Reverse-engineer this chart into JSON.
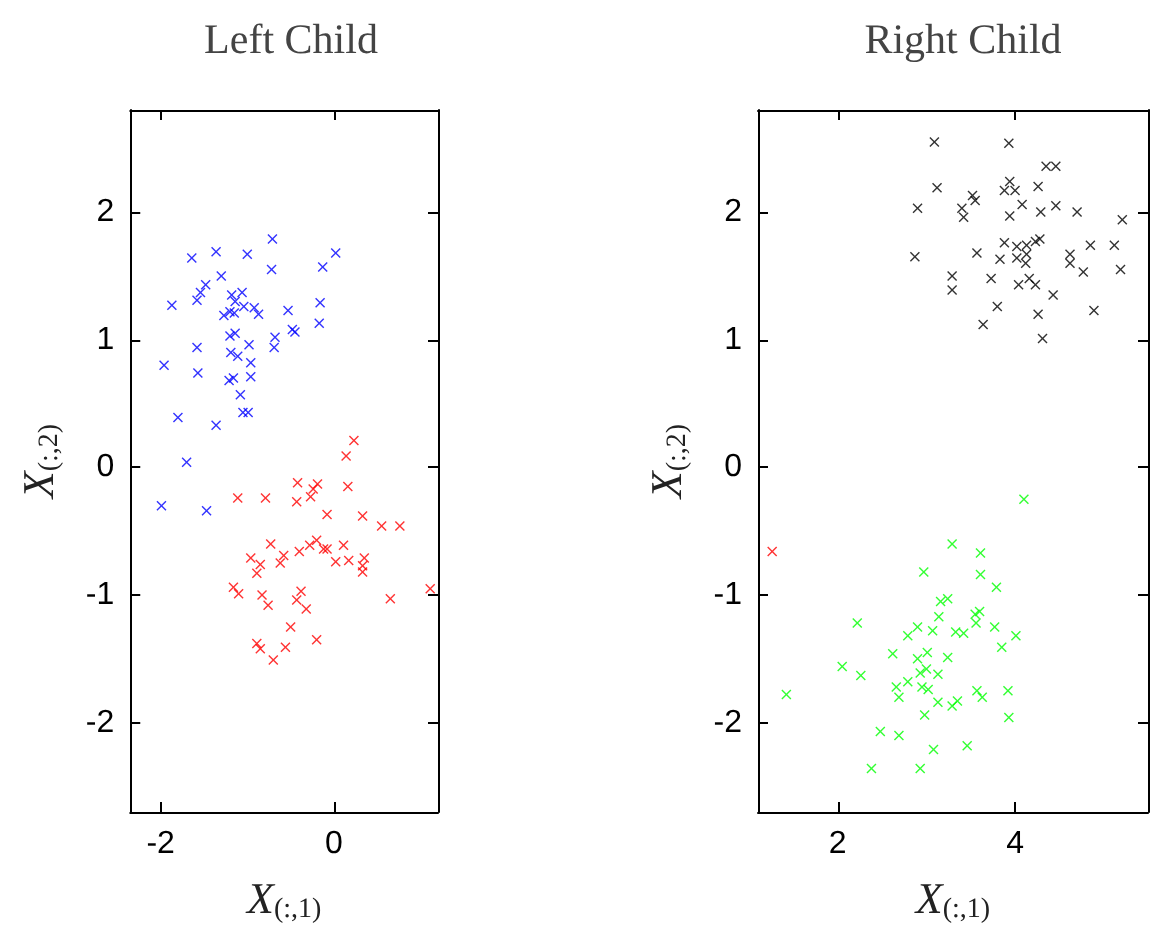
{
  "chart_data": [
    {
      "type": "scatter",
      "title": "Left Child",
      "xlabel": "X$_{(:,1)}$",
      "ylabel": "X$_{(:,2)}$",
      "xlim": [
        -2.35,
        1.2
      ],
      "ylim": [
        -2.7,
        2.8
      ],
      "xticks": [
        -2,
        0
      ],
      "yticks": [
        -2,
        -1,
        0,
        1,
        2
      ],
      "marker": "cross",
      "grid": false,
      "series": [
        {
          "color": "#0000ff",
          "x": [
            -0.71,
            -1.64,
            -1.36,
            -1.0,
            0.02,
            -0.13,
            -0.72,
            -1.3,
            -1.48,
            -1.54,
            -1.18,
            -1.06,
            -1.58,
            -1.14,
            -1.87,
            -1.04,
            -0.92,
            -1.2,
            -1.15,
            -1.27,
            -0.87,
            -0.53,
            -0.16,
            -0.17,
            -0.48,
            -0.45,
            -1.14,
            -1.2,
            -0.68,
            -0.98,
            -0.69,
            -1.58,
            -1.19,
            -1.11,
            -1.96,
            -0.96,
            -1.57,
            -0.96,
            -1.16,
            -1.21,
            -1.08,
            -1.05,
            -0.99,
            -1.8,
            -1.36,
            -1.7,
            -1.99,
            -1.47
          ],
          "values": [
            1.79,
            1.64,
            1.69,
            1.67,
            1.68,
            1.57,
            1.55,
            1.5,
            1.43,
            1.37,
            1.35,
            1.37,
            1.31,
            1.3,
            1.27,
            1.26,
            1.25,
            1.22,
            1.21,
            1.19,
            1.2,
            1.23,
            1.29,
            1.13,
            1.08,
            1.06,
            1.05,
            1.03,
            1.02,
            0.96,
            0.94,
            0.94,
            0.9,
            0.87,
            0.8,
            0.82,
            0.74,
            0.71,
            0.7,
            0.68,
            0.57,
            0.43,
            0.43,
            0.39,
            0.33,
            0.04,
            -0.3,
            -0.34
          ]
        },
        {
          "color": "#ff0000",
          "x": [
            0.23,
            0.14,
            -0.42,
            -0.19,
            -0.24,
            0.16,
            -1.11,
            -0.79,
            -0.27,
            -0.43,
            -0.08,
            0.33,
            0.55,
            0.76,
            -0.73,
            -0.2,
            -0.28,
            0.11,
            -0.12,
            -0.08,
            -0.4,
            -0.58,
            -0.96,
            -0.62,
            -0.85,
            0.02,
            0.17,
            0.35,
            0.33,
            0.33,
            -0.89,
            -1.16,
            -1.1,
            -0.83,
            -0.38,
            1.11,
            0.65,
            -0.43,
            -0.76,
            -0.32,
            -0.5,
            -0.2,
            -0.89,
            -0.85,
            -0.56,
            -0.7
          ],
          "values": [
            0.21,
            0.09,
            -0.12,
            -0.13,
            -0.17,
            -0.15,
            -0.24,
            -0.24,
            -0.23,
            -0.27,
            -0.37,
            -0.38,
            -0.46,
            -0.46,
            -0.6,
            -0.57,
            -0.61,
            -0.61,
            -0.64,
            -0.64,
            -0.66,
            -0.69,
            -0.71,
            -0.75,
            -0.76,
            -0.74,
            -0.73,
            -0.71,
            -0.77,
            -0.82,
            -0.83,
            -0.94,
            -0.99,
            -1.0,
            -0.97,
            -0.95,
            -1.03,
            -1.04,
            -1.08,
            -1.11,
            -1.25,
            -1.35,
            -1.38,
            -1.42,
            -1.41,
            -1.51
          ]
        }
      ]
    },
    {
      "type": "scatter",
      "title": "Right Child",
      "xlabel": "X$_{(:,1)}$",
      "ylabel": "X$_{(:,2)}$",
      "xlim": [
        1.1,
        5.5
      ],
      "ylim": [
        -2.7,
        2.8
      ],
      "xticks": [
        2,
        4
      ],
      "yticks": [
        -2,
        -1,
        0,
        1,
        2
      ],
      "marker": "cross",
      "grid": false,
      "series": [
        {
          "color": "#000000",
          "x": [
            3.09,
            3.93,
            4.35,
            4.46,
            3.94,
            3.12,
            3.88,
            4.0,
            4.26,
            3.52,
            3.55,
            2.9,
            3.4,
            3.42,
            4.08,
            4.46,
            4.29,
            3.94,
            4.7,
            5.21,
            2.87,
            3.57,
            3.88,
            3.83,
            4.02,
            4.02,
            4.13,
            4.23,
            4.28,
            4.13,
            4.12,
            4.62,
            4.62,
            4.85,
            5.12,
            5.19,
            4.77,
            3.29,
            3.29,
            3.73,
            4.04,
            4.16,
            4.23,
            4.43,
            3.8,
            4.89,
            4.26,
            3.64,
            4.31
          ],
          "values": [
            2.55,
            2.54,
            2.36,
            2.36,
            2.24,
            2.19,
            2.17,
            2.17,
            2.2,
            2.13,
            2.09,
            2.03,
            2.03,
            1.96,
            2.06,
            2.05,
            2.0,
            1.97,
            2.0,
            1.94,
            1.65,
            1.68,
            1.76,
            1.63,
            1.73,
            1.64,
            1.74,
            1.77,
            1.79,
            1.67,
            1.6,
            1.67,
            1.6,
            1.74,
            1.74,
            1.55,
            1.53,
            1.5,
            1.39,
            1.48,
            1.43,
            1.48,
            1.43,
            1.35,
            1.26,
            1.23,
            1.2,
            1.12,
            1.01
          ]
        },
        {
          "color": "#00ff00",
          "x": [
            4.1,
            3.29,
            3.61,
            2.97,
            3.61,
            3.79,
            3.24,
            3.16,
            3.14,
            3.6,
            3.55,
            2.22,
            2.9,
            3.56,
            3.77,
            3.07,
            3.33,
            3.42,
            2.79,
            4.01,
            3.85,
            2.62,
            3.01,
            2.9,
            3.24,
            2.05,
            3.0,
            2.93,
            3.13,
            2.26,
            2.79,
            2.66,
            2.95,
            3.02,
            3.57,
            3.92,
            1.42,
            2.69,
            3.63,
            3.35,
            3.29,
            3.13,
            2.98,
            3.93,
            2.48,
            2.69,
            3.46,
            3.08,
            2.38,
            2.93
          ],
          "values": [
            -0.25,
            -0.6,
            -0.67,
            -0.82,
            -0.84,
            -0.94,
            -1.03,
            -1.05,
            -1.17,
            -1.13,
            -1.15,
            -1.22,
            -1.25,
            -1.22,
            -1.25,
            -1.28,
            -1.29,
            -1.3,
            -1.32,
            -1.32,
            -1.41,
            -1.46,
            -1.45,
            -1.5,
            -1.49,
            -1.56,
            -1.58,
            -1.61,
            -1.62,
            -1.63,
            -1.68,
            -1.72,
            -1.72,
            -1.74,
            -1.75,
            -1.75,
            -1.78,
            -1.8,
            -1.8,
            -1.83,
            -1.87,
            -1.84,
            -1.94,
            -1.96,
            -2.07,
            -2.1,
            -2.18,
            -2.21,
            -2.36,
            -2.36
          ]
        },
        {
          "color": "#ff0000",
          "x": [
            1.26
          ],
          "values": [
            -0.66
          ]
        }
      ]
    }
  ]
}
